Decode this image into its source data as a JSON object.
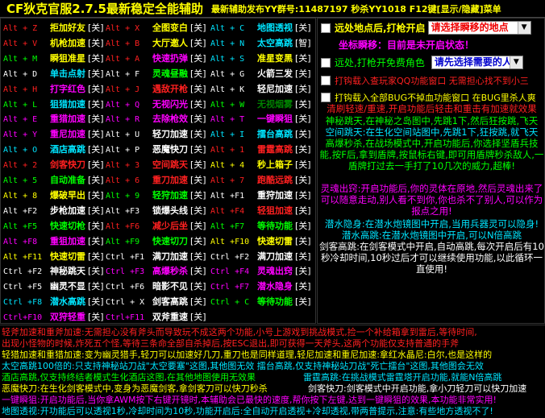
{
  "title": {
    "main": "CF狄克官服2.7.5最新稳定全能辅助",
    "sub": "最新辅助发布YY群号:11487197 秒杀YY1018 F12键[显示/隐藏]菜单"
  },
  "hotkeys": [
    [
      {
        "key": "Alt + Z",
        "label": "拒加好友",
        "state": "[关]",
        "keyColor": "#ff2020",
        "labelColor": "#ffff00"
      },
      {
        "key": "Alt + X",
        "label": "全图变白",
        "state": "[关]",
        "keyColor": "#ff2020",
        "labelColor": "#ffff00"
      },
      {
        "key": "Alt + C",
        "label": "地图透视",
        "state": "[关]",
        "keyColor": "#00e5ff",
        "labelColor": "#00e5ff"
      }
    ],
    [
      {
        "key": "Alt + V",
        "label": "机枪加速",
        "state": "[关]",
        "keyColor": "#ff2020",
        "labelColor": "#ffff00"
      },
      {
        "key": "Alt + B",
        "label": "大厅邀人",
        "state": "[关]",
        "keyColor": "#ff2020",
        "labelColor": "#ffff00"
      },
      {
        "key": "Alt + N",
        "label": "太空高跳",
        "state": "[智]",
        "keyColor": "#00e5ff",
        "labelColor": "#00e5ff"
      }
    ],
    [
      {
        "key": "Alt + M",
        "label": "瞬狙准星",
        "state": "[关]",
        "keyColor": "#00ff00",
        "labelColor": "#ffff00"
      },
      {
        "key": "Alt + A",
        "label": "快速扔弹",
        "state": "[关]",
        "keyColor": "#ff2020",
        "labelColor": "#ff00ff"
      },
      {
        "key": "Alt + S",
        "label": "准星变黑",
        "state": "[关]",
        "keyColor": "#00e5ff",
        "labelColor": "#ffff00"
      }
    ],
    [
      {
        "key": "Alt + D",
        "label": "单击点射",
        "state": "[关]",
        "keyColor": "#ffffff",
        "labelColor": "#00e5ff"
      },
      {
        "key": "Alt + F",
        "label": "灵魂昼融",
        "state": "[关]",
        "keyColor": "#ffffff",
        "labelColor": "#00ff00"
      },
      {
        "key": "Alt + G",
        "label": "火箭三发",
        "state": "[关]",
        "keyColor": "#ffffff",
        "labelColor": "#ffffff"
      }
    ],
    [
      {
        "key": "Alt + H",
        "label": "打字红色",
        "state": "[关]",
        "keyColor": "#ff2020",
        "labelColor": "#ff00ff"
      },
      {
        "key": "Alt + J",
        "label": "遇敌开枪",
        "state": "[关]",
        "keyColor": "#ff2020",
        "labelColor": "#ff2020"
      },
      {
        "key": "Alt + K",
        "label": "轻尼加速",
        "state": "[关]",
        "keyColor": "#ffffff",
        "labelColor": "#ffffff"
      }
    ],
    [
      {
        "key": "Alt + L",
        "label": "狙猎加速",
        "state": "[关]",
        "keyColor": "#00ff00",
        "labelColor": "#00e5ff"
      },
      {
        "key": "Alt + Q",
        "label": "无视闪光",
        "state": "[关]",
        "keyColor": "#ff00ff",
        "labelColor": "#ff00ff"
      },
      {
        "key": "Alt + W",
        "label": "无视烟雾",
        "state": "[关]",
        "keyColor": "#00ff00",
        "labelColor": "#008000"
      }
    ],
    [
      {
        "key": "Alt + E",
        "label": "重猎加速",
        "state": "[关]",
        "keyColor": "#ff00ff",
        "labelColor": "#ff00ff"
      },
      {
        "key": "Alt + R",
        "label": "去除枪效",
        "state": "[关]",
        "keyColor": "#ff00ff",
        "labelColor": "#ff00ff"
      },
      {
        "key": "Alt + T",
        "label": "一键瞬狙",
        "state": "[关]",
        "keyColor": "#ff00ff",
        "labelColor": "#ff00ff"
      }
    ],
    [
      {
        "key": "Alt + Y",
        "label": "重尼加速",
        "state": "[关]",
        "keyColor": "#ff00ff",
        "labelColor": "#ff00ff"
      },
      {
        "key": "Alt + U",
        "label": "轻刀加速",
        "state": "[关]",
        "keyColor": "#ffffff",
        "labelColor": "#ffffff"
      },
      {
        "key": "Alt + I",
        "label": "擂台高跳",
        "state": "[关]",
        "keyColor": "#00e5ff",
        "labelColor": "#00e5ff"
      }
    ],
    [
      {
        "key": "Alt + O",
        "label": "酒店高跳",
        "state": "[关]",
        "keyColor": "#00e5ff",
        "labelColor": "#00e5ff"
      },
      {
        "key": "Alt + P",
        "label": "恶魔快刀",
        "state": "[关]",
        "keyColor": "#ffffff",
        "labelColor": "#ffffff"
      },
      {
        "key": "Alt + 1",
        "label": "雷霆高跳",
        "state": "[关]",
        "keyColor": "#ff2020",
        "labelColor": "#ff2020"
      }
    ],
    [
      {
        "key": "Alt + 2",
        "label": "剑客快刀",
        "state": "[关]",
        "keyColor": "#ff2020",
        "labelColor": "#ff2020"
      },
      {
        "key": "Alt + 3",
        "label": "空间跳天",
        "state": "[关]",
        "keyColor": "#ff2020",
        "labelColor": "#ff2020"
      },
      {
        "key": "Alt + 4",
        "label": "秒上箱子",
        "state": "[关]",
        "keyColor": "#ffff00",
        "labelColor": "#ffff00"
      }
    ],
    [
      {
        "key": "Alt + 5",
        "label": "自动准备",
        "state": "[关]",
        "keyColor": "#00ff00",
        "labelColor": "#00ff00"
      },
      {
        "key": "Alt + 6",
        "label": "重刀加速",
        "state": "[关]",
        "keyColor": "#ff2020",
        "labelColor": "#ff2020"
      },
      {
        "key": "Alt + 7",
        "label": "跑酷远跳",
        "state": "[关]",
        "keyColor": "#ff2020",
        "labelColor": "#ff2020"
      }
    ],
    [
      {
        "key": "Alt + 8",
        "label": "爆破早出",
        "state": "[关]",
        "keyColor": "#ffff00",
        "labelColor": "#ffff00"
      },
      {
        "key": "Alt + 9",
        "label": "轻狩加速",
        "state": "[关]",
        "keyColor": "#00ff00",
        "labelColor": "#00ff00"
      },
      {
        "key": "Alt +F1",
        "label": "重狩加速",
        "state": "[关]",
        "keyColor": "#ffffff",
        "labelColor": "#ffffff"
      }
    ],
    [
      {
        "key": "Alt +F2",
        "label": "步枪加速",
        "state": "[关]",
        "keyColor": "#ffffff",
        "labelColor": "#ffffff"
      },
      {
        "key": "Alt +F3",
        "label": "锁爆头线",
        "state": "[关]",
        "keyColor": "#ffffff",
        "labelColor": "#ffffff"
      },
      {
        "key": "Alt +F4",
        "label": "轻狙加速",
        "state": "[关]",
        "keyColor": "#ff2020",
        "labelColor": "#ff2020"
      }
    ],
    [
      {
        "key": "Alt +F5",
        "label": "快速切枪",
        "state": "[关]",
        "keyColor": "#00ff00",
        "labelColor": "#00ff00"
      },
      {
        "key": "Alt +F6",
        "label": "减少后坐",
        "state": "[关]",
        "keyColor": "#ff2020",
        "labelColor": "#ff2020"
      },
      {
        "key": "Alt +F7",
        "label": "等待功能",
        "state": "[关]",
        "keyColor": "#00ff00",
        "labelColor": "#00ff00"
      }
    ],
    [
      {
        "key": "Alt +F8",
        "label": "重狙加速",
        "state": "[关]",
        "keyColor": "#ff00ff",
        "labelColor": "#ff00ff"
      },
      {
        "key": "Alt +F9",
        "label": "快速切刀",
        "state": "[关]",
        "keyColor": "#00ff00",
        "labelColor": "#00ff00"
      },
      {
        "key": "Alt +F10",
        "label": "快速切雷",
        "state": "[关]",
        "keyColor": "#ffff00",
        "labelColor": "#ffff00"
      }
    ],
    [
      {
        "key": "Alt +F11",
        "label": "快速切雷",
        "state": "[关]",
        "keyColor": "#ffff00",
        "labelColor": "#ffff00"
      },
      {
        "key": "Ctrl +F1",
        "label": "满刀加速",
        "state": "[关]",
        "keyColor": "#ffffff",
        "labelColor": "#ffffff"
      },
      {
        "key": "Ctrl +F2",
        "label": "满刀加速",
        "state": "[关]",
        "keyColor": "#ffffff",
        "labelColor": "#ffffff"
      }
    ],
    [
      {
        "key": "Ctrl +F2",
        "label": "神秘跳天",
        "state": "[关]",
        "keyColor": "#ffffff",
        "labelColor": "#ffffff"
      },
      {
        "key": "Ctrl +F3",
        "label": "高爆秒杀",
        "state": "[关]",
        "keyColor": "#ff00ff",
        "labelColor": "#ff00ff"
      },
      {
        "key": "Ctrl +F4",
        "label": "灵魂出窍",
        "state": "[关]",
        "keyColor": "#ff00ff",
        "labelColor": "#ff00ff"
      }
    ],
    [
      {
        "key": "Ctrl +F5",
        "label": "幽灵不显",
        "state": "[关]",
        "keyColor": "#ffffff",
        "labelColor": "#ffffff"
      },
      {
        "key": "Ctrl +F6",
        "label": "暗影不见",
        "state": "[关]",
        "keyColor": "#ffffff",
        "labelColor": "#ffffff"
      },
      {
        "key": "Ctrl +F7",
        "label": "潜水隐身",
        "state": "[关]",
        "keyColor": "#ff00ff",
        "labelColor": "#ff00ff"
      }
    ],
    [
      {
        "key": "Ctrl +F8",
        "label": "潜水高跳",
        "state": "[关]",
        "keyColor": "#00e5ff",
        "labelColor": "#00e5ff"
      },
      {
        "key": "Ctrl + X",
        "label": "剑客高跳",
        "state": "[关]",
        "keyColor": "#ffffff",
        "labelColor": "#ffffff"
      },
      {
        "key": "Ctrl + C",
        "label": "等待功能",
        "state": "[关]",
        "keyColor": "#00ff00",
        "labelColor": "#00ff00"
      }
    ],
    [
      {
        "key": "Ctrl+F10",
        "label": "双狩轻重",
        "state": "[关]",
        "keyColor": "#ff00ff",
        "labelColor": "#ff00ff"
      },
      {
        "key": "Ctrl+F11",
        "label": "双斧重速",
        "state": "[关]",
        "keyColor": "#ff00ff",
        "labelColor": "#ffffff"
      }
    ]
  ],
  "right": {
    "row1_label": "远处地点后,打枪开启",
    "row1_select": "请选择瞬移的地点",
    "row1_note": "坐标瞬移：目前是未开启状态！",
    "row2_label": "远处,打枪开免费角色",
    "row2_select": "请先选择需要的人物",
    "row3_label": "打钩载入查玩家QQ功能窗口 无需担心找不到小三",
    "row4_label": "打钩载入全部BUG不掉血功能窗口 在BUG里杀人爽",
    "text1": "清刷轻速/重速,开启功能后轻击和重击有加速就效果",
    "text2": "神秘跳天,在神秘之岛图中,先跳1下,然后狂按跳,飞天",
    "text3": "空间跳天:在生化空间站图中,先跳1下,狂按跳,就飞天",
    "text4": "高爆秒杀,在战场模式中,开启功能后,你选择坚盾兵技能,按F后,拿到盾牌,按鼠标右键,即可用盾牌秒杀敌人,一盾牌打过去一手打了10几次的威力,超棒!",
    "text5": "灵魂出窍:开启功能后,你的灵体在原地,然后灵魂出来了可以随意走动,别人看不到你,你也杀不了别人,可以作为报点之用!",
    "text6": "潜水隐身:在潜水炮镜图中开启,当用兵器灵可以隐身!",
    "text7": "潜水高跳:在潜水炮镜图中开启,可以N倍高跳",
    "text8": "剑客高跳:在剑客模式中开启,自动高跳,每次开启后有10秒冷却时间,10秒过后才可以继续使用功能,以此循环一直使用!"
  },
  "bottom": {
    "b1": "轻斧加速和重斧加速:无需担心没有斧头而导致玩不成这两个功能,小号上游戏到挑战模式,捡一个补给箱拿到雷后,等待时间,",
    "b2": "出现小怪物的时候,炸死五个怪,等待三条命全部自杀掉后,按ESC退出,即可获得一天斧头,这两个功能仅支持普通的手斧",
    "b3": "轻猎加速和重猎加速:变为幽灵猎手,轻刀可以加速好几刀,重刀也是同样道理,轻尼加速和重尼加速:拿红水晶尼:白尔,也是这样的",
    "b4": "太空高跳100倍的:只支持神秘站刀战\"太空要塞\"这图,其他图无效    擂台高跳,仅支持神秘站刀战\"死亡擂台\"这图,其他图会无效",
    "b5l": "酒店高跳,仅支持终结者模式生化酒店这图,在其他地图使用无效果",
    "b5r": "雷霆高跳:在挑战模式雷霆塔开启功能,就能N倍高跳",
    "b6l": "恶魔快刀:在生化剑客模式中,变身为恶魔剑客,拿剑客刀可以快刀秒杀",
    "b6r": "剑客快刀:剑客模式中开启功能,拿小刀轻刀可以快刀加速",
    "b7": "一键瞬狙:开启功能后,当你拿AWM按下右键开镜时,本辅助会已最快的速度,帮你按下左键,达到一键瞬狙的效果,本功能非常实用!",
    "b8": "地图透视:开功能后可以透视1秒,冷却时间为10秒,功能开启后:全自动开启透视+冷却透视,带两普提示,注意:有些地方透视不了!"
  },
  "colors": {
    "state_white": "#ffffff",
    "panel_bg": "#000000",
    "title_yellow": "#ffff00"
  }
}
